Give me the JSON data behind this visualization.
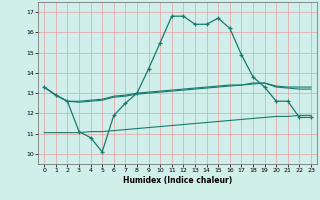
{
  "xlabel": "Humidex (Indice chaleur)",
  "bg_color": "#d0eeea",
  "line_color": "#1a7a6e",
  "grid_color": "#e8a0a0",
  "xlim": [
    -0.5,
    23.5
  ],
  "ylim": [
    9.5,
    17.5
  ],
  "xticks": [
    0,
    1,
    2,
    3,
    4,
    5,
    6,
    7,
    8,
    9,
    10,
    11,
    12,
    13,
    14,
    15,
    16,
    17,
    18,
    19,
    20,
    21,
    22,
    23
  ],
  "yticks": [
    10,
    11,
    12,
    13,
    14,
    15,
    16,
    17
  ],
  "line1_x": [
    0,
    1,
    2,
    3,
    4,
    5,
    6,
    7,
    8,
    9,
    10,
    11,
    12,
    13,
    14,
    15,
    16,
    17,
    18,
    19,
    20,
    21,
    22,
    23
  ],
  "line1_y": [
    13.3,
    12.9,
    12.6,
    11.1,
    10.8,
    10.1,
    11.9,
    12.5,
    13.0,
    14.2,
    15.5,
    16.8,
    16.8,
    16.4,
    16.4,
    16.7,
    16.2,
    14.9,
    13.8,
    13.3,
    12.6,
    12.6,
    11.8,
    11.8
  ],
  "line2_x": [
    0,
    1,
    2,
    3,
    5,
    6,
    7,
    8,
    9,
    10,
    11,
    12,
    13,
    14,
    15,
    16,
    17,
    18,
    19,
    20,
    21,
    22,
    23
  ],
  "line2_y": [
    13.3,
    12.9,
    12.6,
    12.6,
    12.7,
    12.85,
    12.9,
    13.0,
    13.05,
    13.1,
    13.15,
    13.2,
    13.25,
    13.3,
    13.35,
    13.4,
    13.4,
    13.5,
    13.5,
    13.3,
    13.25,
    13.2,
    13.2
  ],
  "line3_x": [
    0,
    1,
    2,
    3,
    5,
    6,
    7,
    8,
    9,
    10,
    11,
    12,
    13,
    14,
    15,
    16,
    17,
    18,
    19,
    20,
    21,
    22,
    23
  ],
  "line3_y": [
    13.3,
    12.9,
    12.6,
    12.55,
    12.65,
    12.8,
    12.85,
    12.95,
    13.0,
    13.05,
    13.1,
    13.15,
    13.2,
    13.25,
    13.3,
    13.35,
    13.4,
    13.45,
    13.5,
    13.35,
    13.3,
    13.3,
    13.3
  ],
  "line4_x": [
    0,
    1,
    2,
    3,
    4,
    5,
    6,
    7,
    8,
    9,
    10,
    11,
    12,
    13,
    14,
    15,
    16,
    17,
    18,
    19,
    20,
    21,
    22,
    23
  ],
  "line4_y": [
    11.05,
    11.05,
    11.05,
    11.05,
    11.1,
    11.1,
    11.15,
    11.2,
    11.25,
    11.3,
    11.35,
    11.4,
    11.45,
    11.5,
    11.55,
    11.6,
    11.65,
    11.7,
    11.75,
    11.8,
    11.85,
    11.85,
    11.9,
    11.9
  ]
}
